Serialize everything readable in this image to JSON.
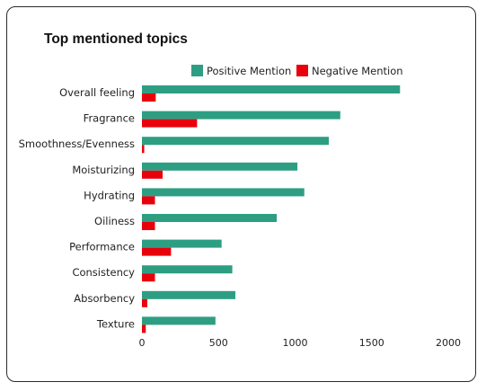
{
  "chart_data": {
    "type": "bar",
    "orientation": "horizontal",
    "title": "Top mentioned topics",
    "categories": [
      "Overall feeling",
      "Fragrance",
      "Smoothness/Evenness",
      "Moisturizing",
      "Hydrating",
      "Oiliness",
      "Performance",
      "Consistency",
      "Absorbency",
      "Texture"
    ],
    "series": [
      {
        "name": "Positive Mention",
        "color": "#2e9e83",
        "values": [
          1685,
          1295,
          1220,
          1015,
          1060,
          880,
          520,
          590,
          610,
          480
        ]
      },
      {
        "name": "Negative Mention",
        "color": "#e8000b",
        "values": [
          90,
          360,
          15,
          135,
          85,
          85,
          190,
          85,
          35,
          25
        ]
      }
    ],
    "xlim": [
      0,
      2000
    ],
    "xticks": [
      0,
      500,
      1000,
      1500,
      2000
    ],
    "legend": "top-right",
    "grid": false
  }
}
